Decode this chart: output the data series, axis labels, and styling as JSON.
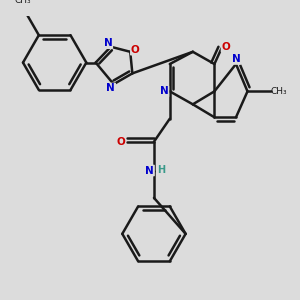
{
  "bg_color": "#dcdcdc",
  "bond_color": "#1a1a1a",
  "bond_width": 1.8,
  "atom_colors": {
    "N": "#0000cc",
    "O": "#cc0000",
    "H": "#3a9a8a",
    "C": "#1a1a1a"
  },
  "figsize": [
    3.0,
    3.0
  ],
  "dpi": 100
}
